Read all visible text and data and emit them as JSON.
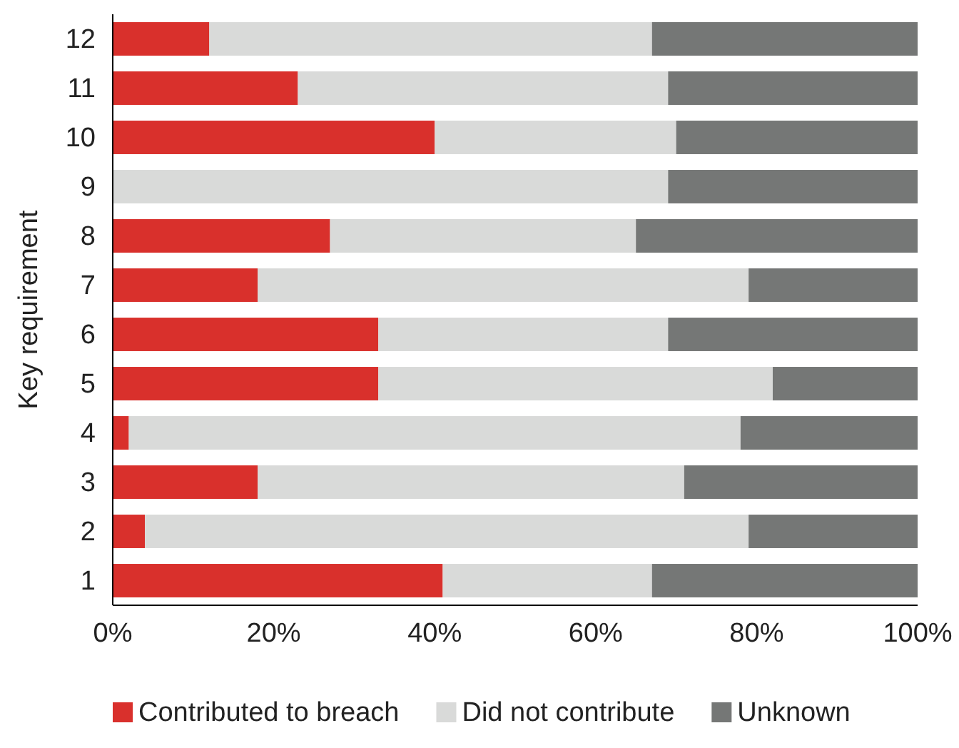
{
  "chart_data": {
    "type": "bar",
    "orientation": "horizontal",
    "stacked": true,
    "ylabel": "Key requirement",
    "categories": [
      "12",
      "11",
      "10",
      "9",
      "8",
      "7",
      "6",
      "5",
      "4",
      "3",
      "2",
      "1"
    ],
    "series": [
      {
        "name": "Contributed to breach",
        "color": "#d9302c",
        "values": [
          12,
          23,
          40,
          0,
          27,
          18,
          33,
          33,
          2,
          18,
          4,
          41
        ]
      },
      {
        "name": "Did not contribute",
        "color": "#d9dad9",
        "values": [
          55,
          46,
          30,
          69,
          38,
          61,
          36,
          49,
          76,
          53,
          75,
          26
        ]
      },
      {
        "name": "Unknown",
        "color": "#757776",
        "values": [
          33,
          31,
          30,
          31,
          35,
          21,
          31,
          18,
          22,
          29,
          21,
          33
        ]
      }
    ],
    "xlim": [
      0,
      100
    ],
    "xticks": [
      {
        "value": 0,
        "label": "0%"
      },
      {
        "value": 20,
        "label": "20%"
      },
      {
        "value": 40,
        "label": "40%"
      },
      {
        "value": 60,
        "label": "60%"
      },
      {
        "value": 80,
        "label": "80%"
      },
      {
        "value": 100,
        "label": "100%"
      }
    ],
    "legend": "bottom",
    "grid": false
  }
}
